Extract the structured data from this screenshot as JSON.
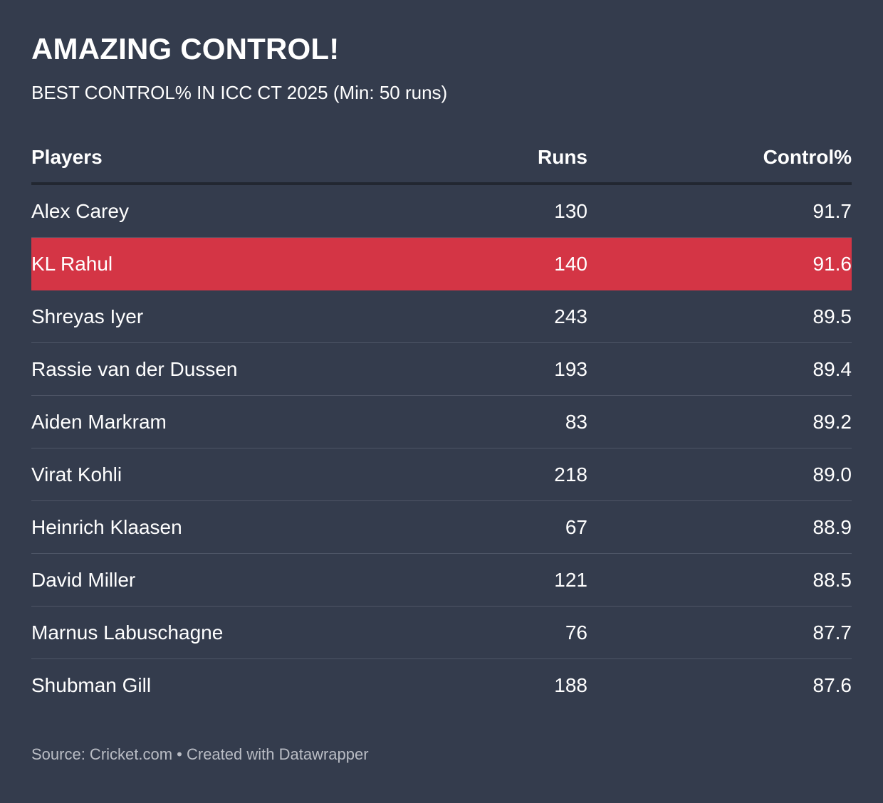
{
  "header": {
    "title": "AMAZING CONTROL!",
    "subtitle": "BEST CONTROL% IN ICC CT 2025 (Min: 50 runs)"
  },
  "colors": {
    "background": "#343c4d",
    "highlight": "#d43545",
    "text": "#ffffff",
    "source_text": "#b9bcc4"
  },
  "chart_data": {
    "type": "table",
    "columns": [
      "Players",
      "Runs",
      "Control%"
    ],
    "rows": [
      {
        "player": "Alex Carey",
        "runs": "130",
        "control": "91.7",
        "highlight": false
      },
      {
        "player": "KL Rahul",
        "runs": "140",
        "control": "91.6",
        "highlight": true
      },
      {
        "player": "Shreyas Iyer",
        "runs": "243",
        "control": "89.5",
        "highlight": false
      },
      {
        "player": "Rassie van der Dussen",
        "runs": "193",
        "control": "89.4",
        "highlight": false
      },
      {
        "player": "Aiden Markram",
        "runs": "83",
        "control": "89.2",
        "highlight": false
      },
      {
        "player": "Virat Kohli",
        "runs": "218",
        "control": "89.0",
        "highlight": false
      },
      {
        "player": "Heinrich Klaasen",
        "runs": "67",
        "control": "88.9",
        "highlight": false
      },
      {
        "player": "David Miller",
        "runs": "121",
        "control": "88.5",
        "highlight": false
      },
      {
        "player": "Marnus Labuschagne",
        "runs": "76",
        "control": "87.7",
        "highlight": false
      },
      {
        "player": "Shubman Gill",
        "runs": "188",
        "control": "87.6",
        "highlight": false
      }
    ]
  },
  "footer": {
    "source": "Source: Cricket.com • Created with Datawrapper"
  }
}
